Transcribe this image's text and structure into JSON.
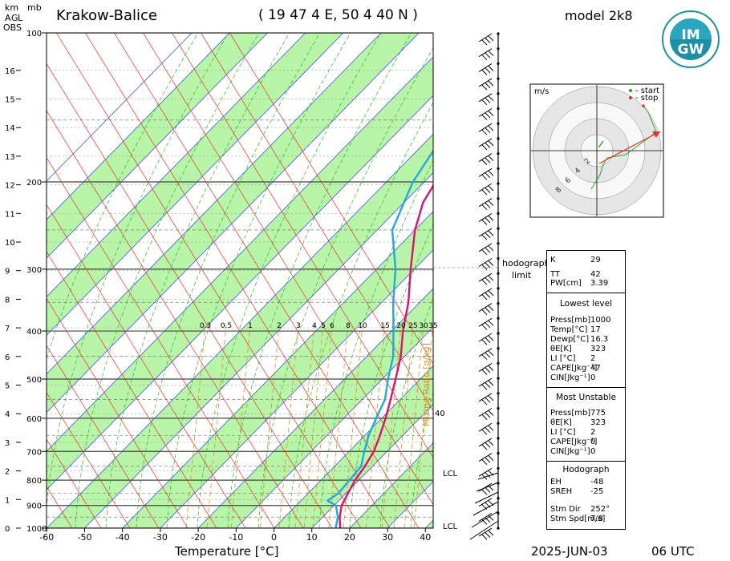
{
  "header": {
    "station": "Krakow-Balice",
    "coords": "( 19 47 4 E, 50 4 40 N )",
    "model": "model 2k8",
    "logo_text": "IMGW",
    "logo_letters": [
      "IM",
      "GW"
    ]
  },
  "left_axis": {
    "km_label": "km",
    "mb_label": "mb",
    "agl": [
      "A",
      "G",
      "L"
    ],
    "obs": "OBS"
  },
  "footer": {
    "date": "2025-JUN-03",
    "time": "06 UTC"
  },
  "chart_data": {
    "type": "line",
    "xlabel": "Temperature [°C]",
    "x_ticks": [
      -60,
      -50,
      -40,
      -30,
      -20,
      -10,
      0,
      10,
      20,
      30,
      40
    ],
    "pressure_ticks": [
      100,
      200,
      300,
      400,
      500,
      600,
      700,
      800,
      900,
      1000
    ],
    "km_ticks": [
      0,
      1,
      2,
      3,
      4,
      5,
      6,
      7,
      8,
      9,
      10,
      11,
      12,
      13,
      14,
      15,
      16
    ],
    "mixing_ratio_label": "Mixing Ratio [g/kg]",
    "mixing_ratio_ticks": [
      "0.3",
      "0.5",
      "1",
      "2",
      "3",
      "4",
      "5",
      "6",
      "8",
      "10",
      "15",
      "20",
      "25",
      "30",
      "35"
    ],
    "right_labels": {
      "forty": "40",
      "lcl_upper": "LCL",
      "lcl_lower": "LCL"
    },
    "series": [
      {
        "name": "Temperature",
        "color": "#e0106e",
        "points": [
          [
            1000,
            17.5
          ],
          [
            950,
            14.5
          ],
          [
            900,
            12
          ],
          [
            850,
            10.5
          ],
          [
            800,
            9
          ],
          [
            750,
            8
          ],
          [
            700,
            6.5
          ],
          [
            650,
            4
          ],
          [
            600,
            1
          ],
          [
            550,
            -2.5
          ],
          [
            500,
            -6.5
          ],
          [
            450,
            -11
          ],
          [
            400,
            -17
          ],
          [
            350,
            -23
          ],
          [
            300,
            -31
          ],
          [
            250,
            -40
          ],
          [
            220,
            -45
          ],
          [
            200,
            -47
          ],
          [
            190,
            -47
          ],
          [
            150,
            -40
          ],
          [
            130,
            -37
          ],
          [
            110,
            -33
          ],
          [
            100,
            -32
          ]
        ]
      },
      {
        "name": "Dewpoint",
        "color": "#22a8dd",
        "points": [
          [
            1000,
            16.3
          ],
          [
            950,
            14
          ],
          [
            900,
            10.5
          ],
          [
            880,
            7
          ],
          [
            850,
            8
          ],
          [
            800,
            7.5
          ],
          [
            750,
            7
          ],
          [
            700,
            4
          ],
          [
            650,
            1
          ],
          [
            600,
            -1.5
          ],
          [
            550,
            -4
          ],
          [
            500,
            -8.5
          ],
          [
            450,
            -13
          ],
          [
            400,
            -19.5
          ],
          [
            350,
            -27
          ],
          [
            300,
            -35
          ],
          [
            250,
            -46
          ],
          [
            200,
            -53
          ],
          [
            170,
            -56
          ],
          [
            150,
            -62
          ],
          [
            130,
            -70
          ],
          [
            110,
            -72
          ],
          [
            100,
            -75
          ]
        ]
      }
    ]
  },
  "hodograph": {
    "unit": "m/s",
    "legend_start": "- start",
    "legend_stop": "- stop",
    "ring_labels": [
      "2",
      "4",
      "6",
      "8"
    ],
    "limit_label": [
      "hodograph",
      "limit"
    ],
    "color_start": "#22aa22",
    "color_stop": "#e23030"
  },
  "indices": {
    "top": [
      {
        "label": "K",
        "value": "29"
      },
      {
        "label": "TT",
        "value": "42"
      },
      {
        "label": "PW[cm]",
        "value": "3.39"
      }
    ],
    "lowest_title": "Lowest level",
    "lowest": [
      {
        "label": "Press[mb]",
        "value": "1000"
      },
      {
        "label": "Temp[°C]",
        "value": "17"
      },
      {
        "label": "Dewp[°C]",
        "value": "16.3"
      },
      {
        "label": "θE[K]",
        "value": "323"
      },
      {
        "label": "LI [°C]",
        "value": "2"
      },
      {
        "label": "CAPE[Jkg⁻¹]",
        "value": "47"
      },
      {
        "label": "CIN[Jkg⁻¹]",
        "value": "0"
      }
    ],
    "unstable_title": "Most Unstable",
    "unstable": [
      {
        "label": "Press[mb]",
        "value": "775"
      },
      {
        "label": "θE[K]",
        "value": "323"
      },
      {
        "label": "LI [°C]",
        "value": "2"
      },
      {
        "label": "CAPE[Jkg⁻¹]",
        "value": "0"
      },
      {
        "label": "CIN[Jkg⁻¹]",
        "value": "0"
      }
    ],
    "hodo_title": "Hodograph",
    "hodo": [
      {
        "label": "EH",
        "value": "-48"
      },
      {
        "label": "SREH",
        "value": "-25"
      }
    ],
    "storm": [
      {
        "label": "Stm Dir",
        "value": "252°"
      },
      {
        "label": "Stm Spd[m/s]",
        "value": "7.8"
      }
    ]
  }
}
